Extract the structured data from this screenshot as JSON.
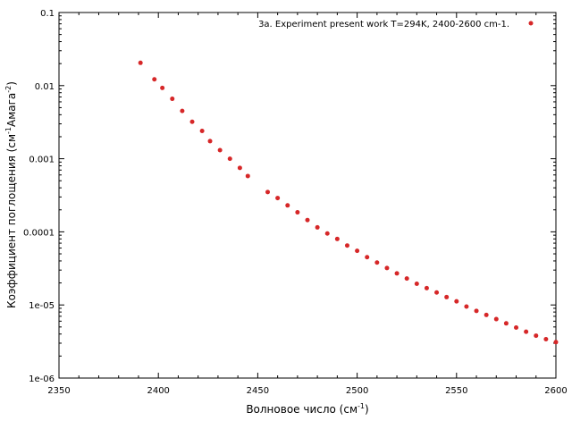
{
  "chart_data": {
    "type": "scatter",
    "xlabel_main": "Волновое число (см",
    "xlabel_sup": "-1",
    "xlabel_end": ")",
    "ylabel_main": "Коэффициент поглощения (см",
    "ylabel_sup1": "-1",
    "ylabel_mid": "Амага",
    "ylabel_sup2": "-2",
    "ylabel_end": ")",
    "x_scale": "linear",
    "y_scale": "log",
    "xlim": [
      2350,
      2600
    ],
    "ylim": [
      1e-06,
      0.1
    ],
    "x_ticks": [
      "2350",
      "2400",
      "2450",
      "2500",
      "2550",
      "2600"
    ],
    "y_ticks": [
      "1e-06",
      "1e-05",
      "0.0001",
      "0.001",
      "0.01",
      "0.1"
    ],
    "legend_position": "top-right",
    "marker_color": "#d62728",
    "series": [
      {
        "name": "3a. Experiment  present work T=294K, 2400-2600 cm-1.",
        "x": [
          2391,
          2398,
          2402,
          2407,
          2412,
          2417,
          2422,
          2426,
          2431,
          2436,
          2441,
          2445,
          2455,
          2460,
          2465,
          2470,
          2475,
          2480,
          2485,
          2490,
          2495,
          2500,
          2505,
          2510,
          2515,
          2520,
          2525,
          2530,
          2535,
          2540,
          2545,
          2550,
          2555,
          2560,
          2565,
          2570,
          2575,
          2580,
          2585,
          2590,
          2595,
          2600
        ],
        "y": [
          0.0205,
          0.0122,
          0.0093,
          0.0066,
          0.0045,
          0.0032,
          0.0024,
          0.00174,
          0.00131,
          0.001,
          0.00075,
          0.00058,
          0.00035,
          0.00029,
          0.00023,
          0.000185,
          0.000145,
          0.000115,
          9.5e-05,
          8e-05,
          6.5e-05,
          5.5e-05,
          4.5e-05,
          3.8e-05,
          3.2e-05,
          2.7e-05,
          2.3e-05,
          1.95e-05,
          1.7e-05,
          1.48e-05,
          1.28e-05,
          1.12e-05,
          9.5e-06,
          8.3e-06,
          7.3e-06,
          6.4e-06,
          5.6e-06,
          4.9e-06,
          4.3e-06,
          3.8e-06,
          3.4e-06,
          3.1e-06
        ]
      }
    ]
  }
}
